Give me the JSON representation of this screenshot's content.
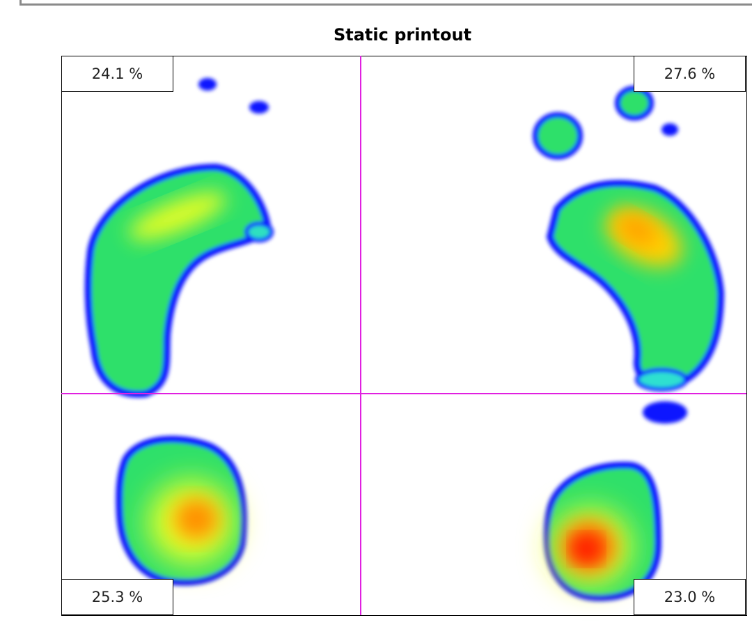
{
  "title": "Static printout",
  "quadrants": {
    "top_left": "24.1 %",
    "top_right": "27.6 %",
    "bottom_left": "25.3 %",
    "bottom_right": "23.0 %"
  }
}
